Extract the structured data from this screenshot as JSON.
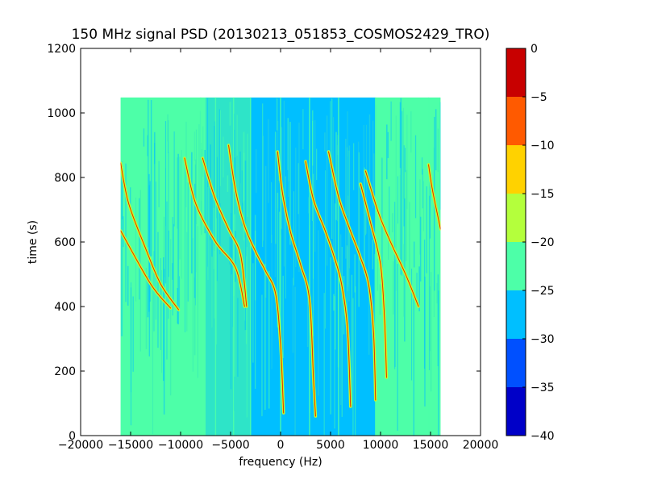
{
  "chart_data": {
    "type": "heatmap",
    "title": "150 MHz signal PSD (20130213_051853_COSMOS2429_TRO)",
    "xlabel": "frequency (Hz)",
    "ylabel": "time (s)",
    "xlim": [
      -20000,
      20000
    ],
    "ylim": [
      0,
      1200
    ],
    "x_ticks": [
      -20000,
      -15000,
      -10000,
      -5000,
      0,
      5000,
      10000,
      15000,
      20000
    ],
    "x_tick_labels": [
      "−20000",
      "−15000",
      "−10000",
      "−5000",
      "0",
      "5000",
      "10000",
      "15000",
      "20000"
    ],
    "y_ticks": [
      0,
      200,
      400,
      600,
      800,
      1000,
      1200
    ],
    "y_tick_labels": [
      "0",
      "200",
      "400",
      "600",
      "800",
      "1000",
      "1200"
    ],
    "data_extent": {
      "x": [
        -16000,
        16000
      ],
      "y": [
        0,
        1048
      ]
    },
    "grid": false,
    "colorbar": {
      "levels": [
        -40,
        -35,
        -30,
        -25,
        -20,
        -15,
        -10,
        -5,
        0
      ],
      "tick_labels": [
        "−40",
        "−35",
        "−30",
        "−25",
        "−20",
        "−15",
        "−10",
        "−5",
        "0"
      ],
      "colors": [
        "#0000c8",
        "#0050ff",
        "#00bfff",
        "#4dffa8",
        "#b4ff3c",
        "#ffd200",
        "#ff5a00",
        "#c80000"
      ]
    },
    "background_bands": [
      {
        "x": [
          -16000,
          -7500
        ],
        "level": "-25 to -20"
      },
      {
        "x": [
          -7500,
          -3000
        ],
        "level": "-30 to -20 mixed"
      },
      {
        "x": [
          -3000,
          9500
        ],
        "level": "-30 to -25"
      },
      {
        "x": [
          9500,
          16000
        ],
        "level": "-25 to -20"
      }
    ],
    "signal_traces": [
      {
        "points": [
          [
            -16000,
            635
          ],
          [
            -13000,
            470
          ],
          [
            -11000,
            395
          ]
        ]
      },
      {
        "points": [
          [
            -16000,
            845
          ],
          [
            -15200,
            720
          ],
          [
            -13500,
            580
          ],
          [
            -12000,
            470
          ],
          [
            -10200,
            390
          ]
        ]
      },
      {
        "points": [
          [
            -9600,
            860
          ],
          [
            -8500,
            720
          ],
          [
            -6500,
            600
          ],
          [
            -4500,
            520
          ],
          [
            -3600,
            400
          ]
        ]
      },
      {
        "points": [
          [
            -7800,
            860
          ],
          [
            -6600,
            740
          ],
          [
            -5200,
            640
          ],
          [
            -4000,
            560
          ],
          [
            -3400,
            400
          ]
        ]
      },
      {
        "points": [
          [
            -5200,
            900
          ],
          [
            -4500,
            760
          ],
          [
            -3600,
            650
          ],
          [
            -2500,
            570
          ],
          [
            -1500,
            510
          ],
          [
            -500,
            440
          ],
          [
            0,
            280
          ],
          [
            300,
            70
          ]
        ]
      },
      {
        "points": [
          [
            -300,
            880
          ],
          [
            200,
            750
          ],
          [
            1000,
            630
          ],
          [
            2000,
            530
          ],
          [
            2900,
            420
          ],
          [
            3300,
            170
          ],
          [
            3500,
            60
          ]
        ]
      },
      {
        "points": [
          [
            2500,
            850
          ],
          [
            3300,
            730
          ],
          [
            4400,
            640
          ],
          [
            5300,
            560
          ],
          [
            6100,
            470
          ],
          [
            6700,
            330
          ],
          [
            7000,
            90
          ]
        ]
      },
      {
        "points": [
          [
            4800,
            880
          ],
          [
            5800,
            740
          ],
          [
            6800,
            650
          ],
          [
            7900,
            560
          ],
          [
            8800,
            470
          ],
          [
            9300,
            320
          ],
          [
            9500,
            110
          ]
        ]
      },
      {
        "points": [
          [
            8500,
            820
          ],
          [
            9800,
            690
          ],
          [
            11000,
            600
          ],
          [
            12500,
            500
          ],
          [
            13800,
            400
          ]
        ]
      },
      {
        "points": [
          [
            8000,
            780
          ],
          [
            9000,
            660
          ],
          [
            10000,
            530
          ],
          [
            10400,
            360
          ],
          [
            10600,
            180
          ]
        ]
      },
      {
        "points": [
          [
            14800,
            840
          ],
          [
            15200,
            760
          ],
          [
            16000,
            640
          ]
        ]
      }
    ],
    "vertical_lines": [
      -8000,
      -6500,
      -4700,
      -3000,
      0,
      2900,
      5800,
      9500,
      14800
    ]
  }
}
